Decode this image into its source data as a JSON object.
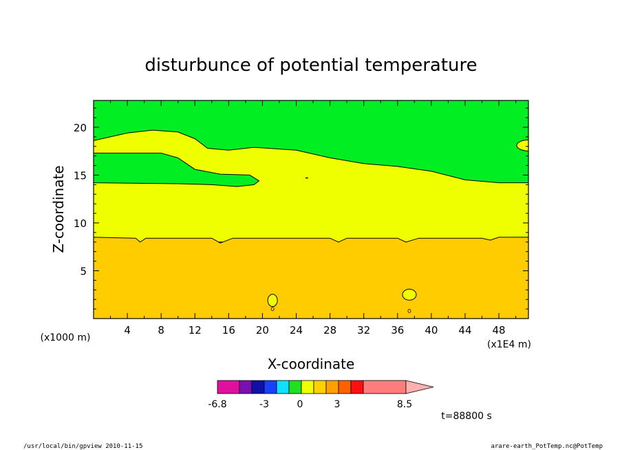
{
  "chart_data": {
    "type": "heatmap",
    "title": "disturbunce of potential temperature",
    "xlabel": "X-coordinate",
    "ylabel": "Z-coordinate",
    "x_unit_left": "(x1000 m)",
    "x_unit_right": "(x1E4 m)",
    "time_label": "t=88800 s",
    "xlim": [
      0,
      51.5
    ],
    "ylim": [
      0,
      22.8
    ],
    "x_ticks": [
      "4",
      "8",
      "12",
      "16",
      "20",
      "24",
      "28",
      "32",
      "36",
      "40",
      "44",
      "48"
    ],
    "y_ticks": [
      "5",
      "10",
      "15",
      "20"
    ],
    "colorbar": {
      "labels": [
        "-6.8",
        "-3",
        "0",
        "3",
        "8.5"
      ],
      "colors": [
        "#e0109e",
        "#7a10b0",
        "#0e10a8",
        "#1840ff",
        "#10e0ff",
        "#20e020",
        "#f0ff00",
        "#ffd000",
        "#ffa000",
        "#ff6000",
        "#ff1010",
        "#ff7d7d",
        "#ffb0b0"
      ],
      "extend": "max"
    },
    "regions": [
      {
        "name": "orange-lower",
        "color": "#ffcc00",
        "boundary_upper": [
          [
            0,
            8.5
          ],
          [
            5,
            8.4
          ],
          [
            5.5,
            8.0
          ],
          [
            6.2,
            8.4
          ],
          [
            14,
            8.4
          ],
          [
            15,
            7.9
          ],
          [
            16.5,
            8.4
          ],
          [
            28,
            8.4
          ],
          [
            29,
            8.0
          ],
          [
            30,
            8.4
          ],
          [
            36,
            8.4
          ],
          [
            37,
            8.0
          ],
          [
            38.5,
            8.4
          ],
          [
            46,
            8.4
          ],
          [
            47,
            8.2
          ],
          [
            48,
            8.5
          ],
          [
            51.5,
            8.5
          ]
        ]
      },
      {
        "name": "yellow-middle",
        "color": "#f0ff00",
        "boundary_upper": [
          [
            0,
            14.2
          ],
          [
            10,
            14.1
          ],
          [
            14,
            14.0
          ],
          [
            17,
            13.8
          ],
          [
            19,
            14.0
          ],
          [
            19.6,
            14.4
          ],
          [
            18.5,
            15.0
          ],
          [
            15,
            15.1
          ],
          [
            12,
            15.6
          ],
          [
            10,
            16.8
          ],
          [
            8,
            17.3
          ],
          [
            0,
            17.3
          ]
        ],
        "second_boundary": [
          [
            0,
            18.6
          ],
          [
            4,
            19.4
          ],
          [
            7,
            19.7
          ],
          [
            10,
            19.5
          ],
          [
            12,
            18.8
          ],
          [
            13.5,
            17.8
          ],
          [
            16,
            17.6
          ],
          [
            19,
            17.9
          ],
          [
            24,
            17.6
          ],
          [
            28,
            16.8
          ],
          [
            32,
            16.2
          ],
          [
            36,
            15.9
          ],
          [
            40,
            15.4
          ],
          [
            44,
            14.5
          ],
          [
            48,
            14.2
          ],
          [
            51.5,
            14.2
          ]
        ]
      },
      {
        "name": "green-upper",
        "color": "#00ee22"
      }
    ],
    "small_contours": [
      {
        "x": 21.2,
        "z": 1.9,
        "level": "0"
      },
      {
        "x": 37.4,
        "z": 2.5,
        "level": "0"
      },
      {
        "x": 50.4,
        "z": 18.1,
        "level": "0"
      }
    ]
  },
  "footer": {
    "left": "/usr/local/bin/gpview   2010-11-15",
    "right": "arare-earth_PotTemp.nc@PotTemp"
  }
}
